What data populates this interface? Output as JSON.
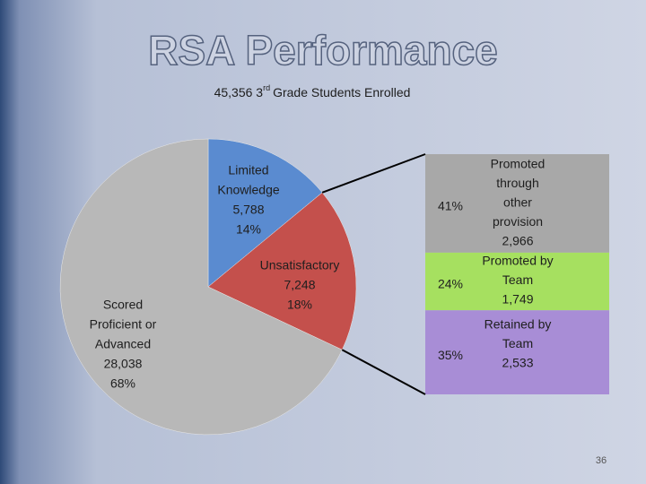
{
  "title": "RSA Performance",
  "page_number": "36",
  "chart_data": [
    {
      "type": "pie",
      "subtitle": {
        "text": "45,356 3",
        "superscript": "rd",
        "rest": "Grade Students Enrolled"
      },
      "categories": [
        [
          "Limited",
          "Knowledge"
        ],
        [
          "Unsatisfactory"
        ],
        [
          "Scored",
          "Proficient or",
          "Advanced"
        ]
      ],
      "counts": [
        5788,
        7248,
        28038
      ],
      "count_labels": [
        "5,788",
        "7,248",
        "28,038"
      ],
      "values": [
        14,
        18,
        68
      ],
      "value_labels": [
        "14%",
        "18%",
        "68%"
      ],
      "colors": [
        "#5a8bd0",
        "#c4504c",
        "#b8b8b8"
      ]
    },
    {
      "type": "bar",
      "categories": [
        [
          "Promoted",
          "through",
          "other",
          "provision"
        ],
        [
          "Promoted by",
          "Team"
        ],
        [
          "Retained by",
          "Team"
        ]
      ],
      "counts": [
        2966,
        1749,
        2533
      ],
      "count_labels": [
        "2,966",
        "1,749",
        "2,533"
      ],
      "values": [
        41,
        24,
        35
      ],
      "value_labels": [
        "41%",
        "24%",
        "35%"
      ],
      "colors": [
        "#a8a8a8",
        "#a6e060",
        "#a88dd6"
      ]
    }
  ]
}
